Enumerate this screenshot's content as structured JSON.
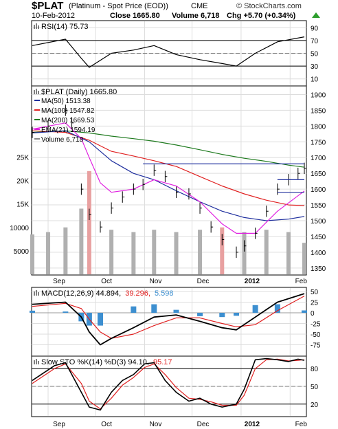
{
  "header": {
    "symbol": "$PLAT",
    "name": "(Platinum  - Spot Price (EOD))",
    "exchange": "CME",
    "brand": "© StockCharts.com",
    "date": "10-Feb-2012",
    "close": "Close 1665.80",
    "volume": "Volume 6,718",
    "change": "Chg +5.70 (+0.34%)",
    "change_icon": "up-triangle-icon"
  },
  "colors": {
    "price": "#000000",
    "ma50": "#1f2f9e",
    "ma100": "#e02020",
    "ma200": "#1e7a1e",
    "ema21": "#e020e0",
    "volume_up": "#b0b0b0",
    "volume_down": "#e8a0a0",
    "macd_hist": "#3d8fd0",
    "stoch_d": "#e02020",
    "rsi_fill_high": "#2e8b57",
    "rsi_fill_low": "#c06060"
  },
  "rsi_panel": {
    "label": "RSI(14) 75.73",
    "ticks": [
      "90",
      "70",
      "50",
      "30",
      "10"
    ],
    "tick_values": [
      90,
      70,
      50,
      30,
      10
    ],
    "range": [
      0,
      100
    ],
    "bands": [
      70,
      30
    ]
  },
  "price_panel": {
    "label": "$PLAT (Daily) 1665.80",
    "legend": [
      {
        "text": "MA(50) 1513.38",
        "color": "#1f2f9e"
      },
      {
        "text": "MA(100) 1547.82",
        "color": "#e02020"
      },
      {
        "text": "MA(200) 1669.53",
        "color": "#1e7a1e"
      },
      {
        "text": "EMA(21) 1594.19",
        "color": "#e020e0"
      },
      {
        "text": "Volume 6,718",
        "color": "#888888"
      }
    ],
    "ticks": [
      "1900",
      "1850",
      "1800",
      "1750",
      "1700",
      "1650",
      "1600",
      "1550",
      "1500",
      "1450",
      "1400",
      "1350"
    ],
    "tick_values": [
      1900,
      1850,
      1800,
      1750,
      1700,
      1650,
      1600,
      1550,
      1500,
      1450,
      1400,
      1350
    ],
    "range": [
      1330,
      1925
    ],
    "volume_ticks": [
      "25K",
      "20K",
      "15K",
      "10000",
      "5000"
    ],
    "volume_tick_values": [
      25000,
      20000,
      15000,
      10000,
      5000
    ],
    "volume_range": [
      0,
      40000
    ]
  },
  "macd_panel": {
    "label_main": "MACD(12,26,9) 44.894,",
    "label_signal": "39.296,",
    "label_hist": "5.598",
    "ticks": [
      "50",
      "25",
      "0",
      "-25",
      "-50",
      "-75"
    ],
    "tick_values": [
      50,
      25,
      0,
      -25,
      -50,
      -75
    ],
    "range": [
      -100,
      58
    ]
  },
  "stoch_panel": {
    "label_main": "Slow STO %K(14) %D(3) 94.10,",
    "label_d": "95.17",
    "ticks": [
      "80",
      "50",
      "20"
    ],
    "tick_values": [
      80,
      50,
      20
    ],
    "range": [
      0,
      100
    ]
  },
  "x_axis": {
    "labels": [
      "Sep",
      "Oct",
      "Nov",
      "Dec",
      "2012",
      "Feb"
    ],
    "bold": [
      false,
      false,
      false,
      false,
      true,
      false
    ]
  },
  "chart_data": {
    "type": "line",
    "title": "$PLAT (Daily) 1665.80",
    "x_start": "2011-08-22",
    "x_end": "2012-02-10",
    "series": [
      {
        "name": "$PLAT (Daily)",
        "style": "ohlc",
        "x": [
          "2011-08-22",
          "2011-09-01",
          "2011-09-12",
          "2011-09-16",
          "2011-09-22",
          "2011-09-27",
          "2011-10-04",
          "2011-10-11",
          "2011-10-18",
          "2011-10-25",
          "2011-10-31",
          "2011-11-07",
          "2011-11-14",
          "2011-11-21",
          "2011-11-29",
          "2011-12-06",
          "2011-12-13",
          "2011-12-20",
          "2011-12-29",
          "2012-01-03",
          "2012-01-10",
          "2012-01-17",
          "2012-01-24",
          "2012-01-31",
          "2012-02-06",
          "2012-02-10"
        ],
        "values": [
          1780,
          1800,
          1850,
          1810,
          1600,
          1520,
          1480,
          1540,
          1575,
          1600,
          1615,
          1660,
          1640,
          1590,
          1585,
          1540,
          1480,
          1440,
          1400,
          1420,
          1460,
          1530,
          1600,
          1630,
          1650,
          1665.8
        ]
      },
      {
        "name": "MA(50) 1513.38",
        "x": [
          "2011-08-22",
          "2011-09-12",
          "2011-09-27",
          "2011-10-11",
          "2011-10-25",
          "2011-11-07",
          "2011-11-21",
          "2011-12-06",
          "2011-12-20",
          "2012-01-03",
          "2012-01-17",
          "2012-01-31",
          "2012-02-10"
        ],
        "values": [
          1778,
          1785,
          1750,
          1690,
          1650,
          1630,
          1595,
          1560,
          1530,
          1510,
          1500,
          1505,
          1513.38
        ]
      },
      {
        "name": "MA(100) 1547.82",
        "x": [
          "2011-08-22",
          "2011-09-12",
          "2011-09-27",
          "2011-10-11",
          "2011-10-25",
          "2011-11-07",
          "2011-11-21",
          "2011-12-06",
          "2011-12-20",
          "2012-01-03",
          "2012-01-17",
          "2012-01-31",
          "2012-02-10"
        ],
        "values": [
          1785,
          1780,
          1755,
          1720,
          1705,
          1690,
          1672,
          1640,
          1610,
          1585,
          1565,
          1550,
          1547.82
        ]
      },
      {
        "name": "MA(200) 1669.53",
        "x": [
          "2011-08-22",
          "2011-09-12",
          "2011-09-27",
          "2011-10-11",
          "2011-10-25",
          "2011-11-07",
          "2011-11-21",
          "2011-12-06",
          "2011-12-20",
          "2012-01-03",
          "2012-01-17",
          "2012-01-31",
          "2012-02-10"
        ],
        "values": [
          1780,
          1785,
          1778,
          1768,
          1760,
          1752,
          1740,
          1725,
          1710,
          1698,
          1688,
          1676,
          1669.53
        ]
      },
      {
        "name": "EMA(21) 1594.19",
        "x": [
          "2011-08-22",
          "2011-09-12",
          "2011-09-22",
          "2011-09-27",
          "2011-10-04",
          "2011-10-11",
          "2011-10-25",
          "2011-11-07",
          "2011-11-21",
          "2011-12-06",
          "2011-12-20",
          "2011-12-29",
          "2012-01-10",
          "2012-01-24",
          "2012-02-10"
        ],
        "values": [
          1790,
          1810,
          1760,
          1700,
          1620,
          1590,
          1600,
          1630,
          1610,
          1560,
          1490,
          1460,
          1460,
          1530,
          1594.19
        ]
      },
      {
        "name": "Volume 6,718",
        "style": "bars",
        "x": [
          "2011-08-22",
          "2011-09-01",
          "2011-09-12",
          "2011-09-22",
          "2011-09-27",
          "2011-10-11",
          "2011-10-25",
          "2011-11-07",
          "2011-11-21",
          "2011-12-06",
          "2011-12-20",
          "2012-01-03",
          "2012-01-17",
          "2012-01-31",
          "2012-02-10"
        ],
        "values": [
          8500,
          9000,
          10000,
          14000,
          22000,
          9500,
          9000,
          9500,
          9000,
          9500,
          10000,
          9000,
          9500,
          9000,
          6718
        ]
      },
      {
        "name": "RSI(14) 75.73",
        "x": [
          "2011-08-22",
          "2011-09-12",
          "2011-09-22",
          "2011-09-27",
          "2011-10-11",
          "2011-10-25",
          "2011-11-07",
          "2011-11-21",
          "2011-12-06",
          "2011-12-20",
          "2011-12-29",
          "2012-01-10",
          "2012-01-24",
          "2012-02-10"
        ],
        "values": [
          62,
          72,
          42,
          28,
          50,
          55,
          62,
          48,
          40,
          34,
          30,
          50,
          68,
          75.73
        ]
      },
      {
        "name": "MACD(12,26,9) 44.894",
        "x": [
          "2011-08-22",
          "2011-09-12",
          "2011-09-22",
          "2011-09-27",
          "2011-10-04",
          "2011-10-11",
          "2011-10-25",
          "2011-11-07",
          "2011-11-21",
          "2011-12-06",
          "2011-12-20",
          "2011-12-29",
          "2012-01-10",
          "2012-01-24",
          "2012-02-10"
        ],
        "values": [
          20,
          25,
          -10,
          -45,
          -75,
          -60,
          -35,
          -10,
          -5,
          -20,
          -35,
          -40,
          -10,
          25,
          44.894
        ]
      },
      {
        "name": "Signal 39.296",
        "x": [
          "2011-08-22",
          "2011-09-12",
          "2011-09-22",
          "2011-09-27",
          "2011-10-04",
          "2011-10-11",
          "2011-10-25",
          "2011-11-07",
          "2011-11-21",
          "2011-12-06",
          "2011-12-20",
          "2011-12-29",
          "2012-01-10",
          "2012-01-24",
          "2012-02-10"
        ],
        "values": [
          15,
          22,
          10,
          -15,
          -45,
          -60,
          -50,
          -30,
          -12,
          -12,
          -25,
          -33,
          -28,
          5,
          39.296
        ]
      },
      {
        "name": "Histogram 5.598",
        "x": [
          "2011-08-22",
          "2011-09-12",
          "2011-09-22",
          "2011-09-27",
          "2011-10-04",
          "2011-10-11",
          "2011-10-25",
          "2011-11-07",
          "2011-11-21",
          "2011-12-06",
          "2011-12-20",
          "2011-12-29",
          "2012-01-10",
          "2012-01-24",
          "2012-02-10"
        ],
        "values": [
          5,
          3,
          -20,
          -30,
          -30,
          0,
          15,
          20,
          7,
          -8,
          -10,
          -7,
          18,
          20,
          5.598
        ]
      },
      {
        "name": "%K(14) 94.10",
        "x": [
          "2011-08-22",
          "2011-09-05",
          "2011-09-12",
          "2011-09-22",
          "2011-09-27",
          "2011-10-04",
          "2011-10-11",
          "2011-10-18",
          "2011-10-25",
          "2011-11-01",
          "2011-11-07",
          "2011-11-14",
          "2011-11-21",
          "2011-11-29",
          "2011-12-06",
          "2011-12-13",
          "2011-12-20",
          "2011-12-29",
          "2012-01-03",
          "2012-01-10",
          "2012-01-17",
          "2012-01-24",
          "2012-01-31",
          "2012-02-06",
          "2012-02-10"
        ],
        "values": [
          60,
          85,
          90,
          40,
          15,
          10,
          40,
          60,
          70,
          88,
          90,
          60,
          40,
          25,
          30,
          20,
          15,
          20,
          45,
          95,
          97,
          95,
          92,
          96,
          94.1
        ]
      },
      {
        "name": "%D(3) 95.17",
        "x": [
          "2011-08-22",
          "2011-09-05",
          "2011-09-12",
          "2011-09-22",
          "2011-09-27",
          "2011-10-04",
          "2011-10-11",
          "2011-10-18",
          "2011-10-25",
          "2011-11-01",
          "2011-11-07",
          "2011-11-14",
          "2011-11-21",
          "2011-11-29",
          "2011-12-06",
          "2011-12-13",
          "2011-12-20",
          "2011-12-29",
          "2012-01-03",
          "2012-01-10",
          "2012-01-17",
          "2012-01-24",
          "2012-01-31",
          "2012-02-06",
          "2012-02-10"
        ],
        "values": [
          55,
          80,
          88,
          55,
          25,
          12,
          30,
          52,
          65,
          82,
          88,
          70,
          48,
          30,
          28,
          24,
          18,
          18,
          35,
          80,
          95,
          96,
          93,
          94,
          95.17
        ]
      }
    ],
    "trendlines": [
      {
        "name": "resistance",
        "x": [
          "2011-10-31",
          "2012-02-10"
        ],
        "values": [
          1680,
          1680
        ]
      },
      {
        "name": "channel-top",
        "x": [
          "2012-01-24",
          "2012-02-10"
        ],
        "values": [
          1630,
          1630
        ]
      },
      {
        "name": "channel-bottom",
        "x": [
          "2012-01-24",
          "2012-02-10"
        ],
        "values": [
          1590,
          1590
        ]
      }
    ],
    "grid": true,
    "legend": "top-left"
  }
}
